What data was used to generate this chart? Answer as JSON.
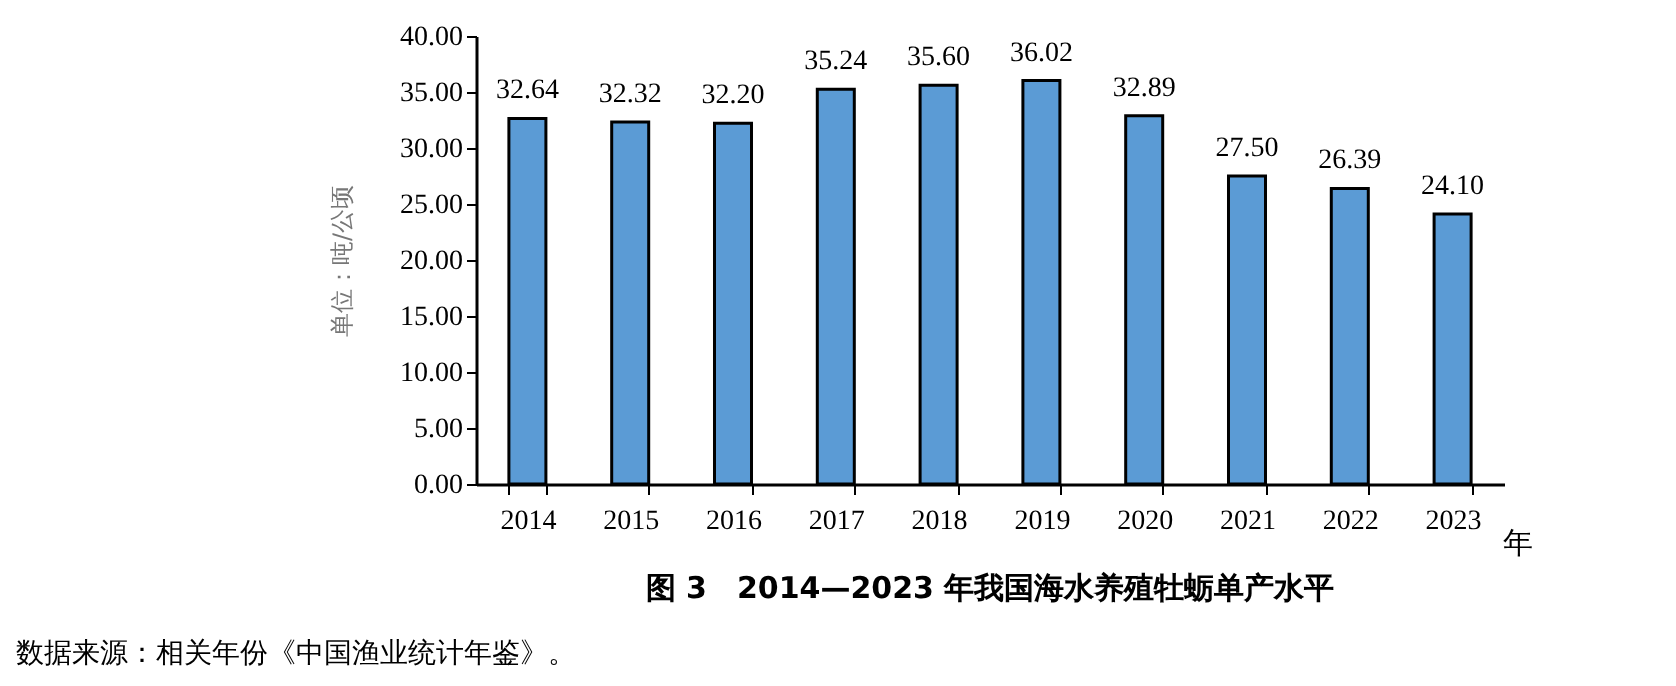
{
  "chart_data": {
    "type": "bar",
    "title": "图 3　2014—2023 年我国海水养殖牡蛎单产水平",
    "xlabel": "年",
    "ylabel": "单位：吨/公顷",
    "categories": [
      "2014",
      "2015",
      "2016",
      "2017",
      "2018",
      "2019",
      "2020",
      "2021",
      "2022",
      "2023"
    ],
    "values": [
      32.64,
      32.32,
      32.2,
      35.24,
      35.6,
      36.02,
      32.89,
      27.5,
      26.39,
      24.1
    ],
    "value_labels": [
      "32.64",
      "32.32",
      "32.20",
      "35.24",
      "35.60",
      "36.02",
      "32.89",
      "27.50",
      "26.39",
      "24.10"
    ],
    "color": "#5b9bd5",
    "ylim": [
      0,
      40
    ],
    "yticks": [
      {
        "value": 0,
        "label": "0.00"
      },
      {
        "value": 5,
        "label": "5.00"
      },
      {
        "value": 10,
        "label": "10.00"
      },
      {
        "value": 15,
        "label": "15.00"
      },
      {
        "value": 20,
        "label": "20.00"
      },
      {
        "value": 25,
        "label": "25.00"
      },
      {
        "value": 30,
        "label": "30.00"
      },
      {
        "value": 35,
        "label": "35.00"
      },
      {
        "value": 40,
        "label": "40.00"
      }
    ],
    "grid": false,
    "annotations": [
      "数据来源：相关年份《中国渔业统计年鉴》。"
    ]
  }
}
